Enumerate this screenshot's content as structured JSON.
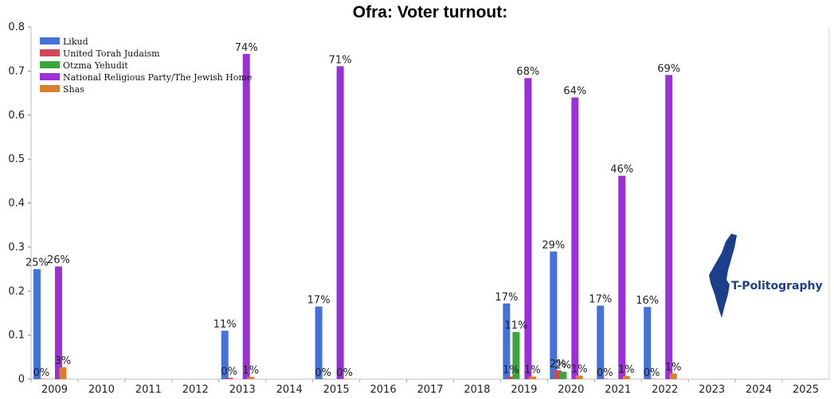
{
  "chart_data": {
    "type": "bar",
    "title": "Ofra: Voter turnout:",
    "xlabel": "",
    "ylabel": "",
    "categories": [
      "2009",
      "2010",
      "2011",
      "2012",
      "2013",
      "2014",
      "2015",
      "2016",
      "2017",
      "2018",
      "2019",
      "2020",
      "2021",
      "2022",
      "2023",
      "2024",
      "2025"
    ],
    "ylim": [
      0,
      0.8
    ],
    "yticks": [
      0,
      0.1,
      0.2,
      0.3,
      0.4,
      0.5,
      0.6,
      0.7,
      0.8
    ],
    "ytick_labels": [
      "0",
      "0.1",
      "0.2",
      "0.3",
      "0.4",
      "0.5",
      "0.6",
      "0.7",
      "0.8"
    ],
    "grid": false,
    "legend_position": "top-left",
    "series": [
      {
        "name": "Likud",
        "color": "#4472d8",
        "values": [
          0.25,
          null,
          null,
          null,
          0.11,
          null,
          0.165,
          null,
          null,
          null,
          0.172,
          0.29,
          0.167,
          0.164,
          null,
          null,
          null
        ],
        "labels": [
          "25%",
          null,
          null,
          null,
          "11%",
          null,
          "17%",
          null,
          null,
          null,
          "17%",
          "29%",
          "17%",
          "16%",
          null,
          null,
          null
        ]
      },
      {
        "name": "United Torah Judaism",
        "color": "#d04858",
        "values": [
          0.0,
          null,
          null,
          null,
          0.003,
          null,
          0.0,
          null,
          null,
          null,
          0.006,
          0.02,
          0.0,
          0.0,
          null,
          null,
          null
        ],
        "labels": [
          "0%",
          null,
          null,
          null,
          "0%",
          null,
          "0%",
          null,
          null,
          null,
          "1%",
          "2%",
          "0%",
          "0%",
          null,
          null,
          null
        ]
      },
      {
        "name": "Otzma Yehudit",
        "color": "#3aa63a",
        "values": [
          null,
          null,
          null,
          null,
          null,
          null,
          null,
          null,
          null,
          null,
          0.107,
          0.017,
          null,
          null,
          null,
          null,
          null
        ],
        "labels": [
          null,
          null,
          null,
          null,
          null,
          null,
          null,
          null,
          null,
          null,
          "11%",
          "2%",
          null,
          null,
          null,
          null,
          null
        ]
      },
      {
        "name": "National Religious Party/The Jewish Home",
        "color": "#9b30d9",
        "values": [
          0.256,
          null,
          null,
          null,
          0.739,
          null,
          0.711,
          null,
          null,
          null,
          0.684,
          0.64,
          0.462,
          0.691,
          null,
          null,
          null
        ],
        "labels": [
          "26%",
          null,
          null,
          null,
          "74%",
          null,
          "71%",
          null,
          null,
          null,
          "68%",
          "64%",
          "46%",
          "69%",
          null,
          null,
          null
        ]
      },
      {
        "name": "Shas",
        "color": "#d8802a",
        "values": [
          0.027,
          null,
          null,
          null,
          0.005,
          null,
          0.0,
          null,
          null,
          null,
          0.006,
          0.008,
          0.007,
          0.013,
          null,
          null,
          null
        ],
        "labels": [
          "3%",
          null,
          null,
          null,
          "1%",
          null,
          "0%",
          null,
          null,
          null,
          "1%",
          "1%",
          "1%",
          "1%",
          null,
          null,
          null
        ]
      }
    ]
  },
  "logo": {
    "text": "T-Politography",
    "color": "#1b3f8b"
  }
}
